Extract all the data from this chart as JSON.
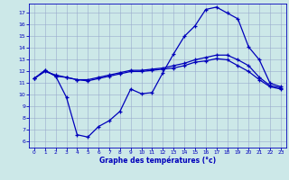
{
  "xlabel": "Graphe des températures (°c)",
  "background_color": "#cce8e8",
  "grid_color": "#99aacc",
  "line_color": "#0000bb",
  "ylim": [
    5.5,
    17.8
  ],
  "xlim": [
    -0.5,
    23.5
  ],
  "yticks": [
    6,
    7,
    8,
    9,
    10,
    11,
    12,
    13,
    14,
    15,
    16,
    17
  ],
  "xticks": [
    0,
    1,
    2,
    3,
    4,
    5,
    6,
    7,
    8,
    9,
    10,
    11,
    12,
    13,
    14,
    15,
    16,
    17,
    18,
    19,
    20,
    21,
    22,
    23
  ],
  "line1_x": [
    0,
    1,
    2,
    3,
    4,
    5,
    6,
    7,
    8,
    9,
    10,
    11,
    12,
    13,
    14,
    15,
    16,
    17,
    18,
    19,
    20,
    21,
    22,
    23
  ],
  "line1_y": [
    11.4,
    12.1,
    11.6,
    9.8,
    6.6,
    6.4,
    7.3,
    7.8,
    8.6,
    10.5,
    10.1,
    10.2,
    11.9,
    13.5,
    15.0,
    15.9,
    17.3,
    17.5,
    17.0,
    16.5,
    14.1,
    13.0,
    11.0,
    10.7
  ],
  "line2_x": [
    0,
    1,
    2,
    3,
    4,
    5,
    6,
    7,
    8,
    9,
    10,
    11,
    12,
    13,
    14,
    15,
    16,
    17,
    18,
    19,
    20,
    21,
    22,
    23
  ],
  "line2_y": [
    11.4,
    12.0,
    11.7,
    11.5,
    11.3,
    11.3,
    11.5,
    11.7,
    11.9,
    12.1,
    12.1,
    12.2,
    12.3,
    12.5,
    12.7,
    13.0,
    13.2,
    13.4,
    13.4,
    13.0,
    12.5,
    11.5,
    10.8,
    10.6
  ],
  "line3_x": [
    0,
    1,
    2,
    3,
    4,
    5,
    6,
    7,
    8,
    9,
    10,
    11,
    12,
    13,
    14,
    15,
    16,
    17,
    18,
    19,
    20,
    21,
    22,
    23
  ],
  "line3_y": [
    11.4,
    12.1,
    11.6,
    11.5,
    11.3,
    11.2,
    11.4,
    11.6,
    11.8,
    12.0,
    12.0,
    12.1,
    12.2,
    12.3,
    12.5,
    12.8,
    12.9,
    13.1,
    13.0,
    12.5,
    12.0,
    11.3,
    10.7,
    10.5
  ]
}
